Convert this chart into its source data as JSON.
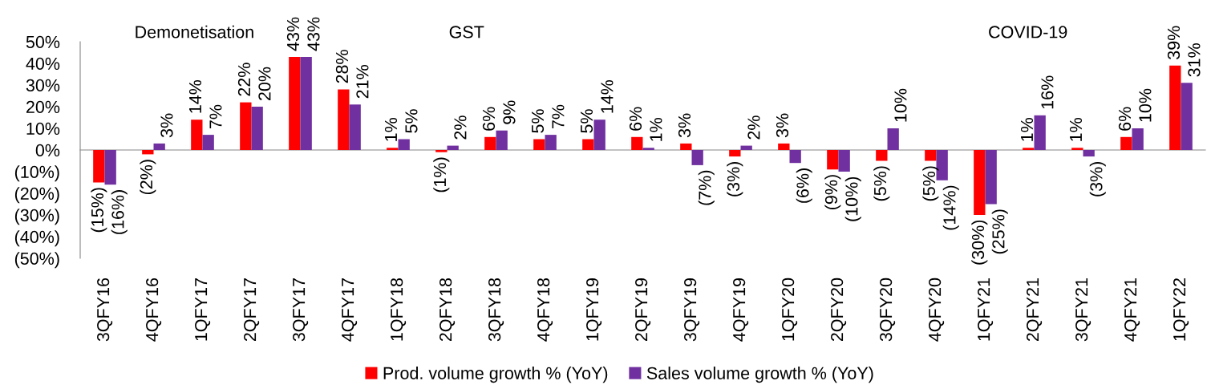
{
  "chart_data": {
    "type": "bar",
    "categories": [
      "3QFY16",
      "4QFY16",
      "1QFY17",
      "2QFY17",
      "3QFY17",
      "4QFY17",
      "1QFY18",
      "2QFY18",
      "3QFY18",
      "4QFY18",
      "1QFY19",
      "2QFY19",
      "3QFY19",
      "4QFY19",
      "1QFY20",
      "2QFY20",
      "3QFY20",
      "4QFY20",
      "1QFY21",
      "2QFY21",
      "3QFY21",
      "4QFY21",
      "1QFY22"
    ],
    "series": [
      {
        "name": "Prod. volume growth % (YoY)",
        "color": "#ff0000",
        "values": [
          -15,
          -2,
          14,
          22,
          43,
          28,
          1,
          -1,
          6,
          5,
          5,
          6,
          3,
          -3,
          3,
          -9,
          -5,
          -5,
          -30,
          1,
          1,
          6,
          39
        ],
        "value_labels": [
          "(15%)",
          "(2%)",
          "14%",
          "22%",
          "43%",
          "28%",
          "1%",
          "(1%)",
          "6%",
          "5%",
          "5%",
          "6%",
          "3%",
          "(3%)",
          "3%",
          "(9%)",
          "(5%)",
          "(5%)",
          "(30%)",
          "1%",
          "1%",
          "6%",
          "39%"
        ]
      },
      {
        "name": "Sales volume growth % (YoY)",
        "color": "#7030a0",
        "values": [
          -16,
          3,
          7,
          20,
          43,
          21,
          5,
          2,
          9,
          7,
          14,
          1,
          -7,
          2,
          -6,
          -10,
          10,
          -14,
          -25,
          16,
          -3,
          10,
          31
        ],
        "value_labels": [
          "(16%)",
          "3%",
          "7%",
          "20%",
          "43%",
          "21%",
          "5%",
          "2%",
          "9%",
          "7%",
          "14%",
          "1%",
          "(7%)",
          "2%",
          "(6%)",
          "(10%)",
          "10%",
          "(14%)",
          "(25%)",
          "16%",
          "(3%)",
          "10%",
          "31%"
        ]
      }
    ],
    "ylim": [
      -50,
      50
    ],
    "yticks": [
      {
        "value": -50,
        "label": "(50%)"
      },
      {
        "value": -40,
        "label": "(40%)"
      },
      {
        "value": -30,
        "label": "(30%)"
      },
      {
        "value": -20,
        "label": "(20%)"
      },
      {
        "value": -10,
        "label": "(10%)"
      },
      {
        "value": 0,
        "label": "0%"
      },
      {
        "value": 10,
        "label": "10%"
      },
      {
        "value": 20,
        "label": "20%"
      },
      {
        "value": 30,
        "label": "30%"
      },
      {
        "value": 40,
        "label": "40%"
      },
      {
        "value": 50,
        "label": "50%"
      }
    ],
    "legend": "bottom",
    "annotations": [
      "Demonetisation",
      "GST",
      "COVID-19"
    ]
  }
}
